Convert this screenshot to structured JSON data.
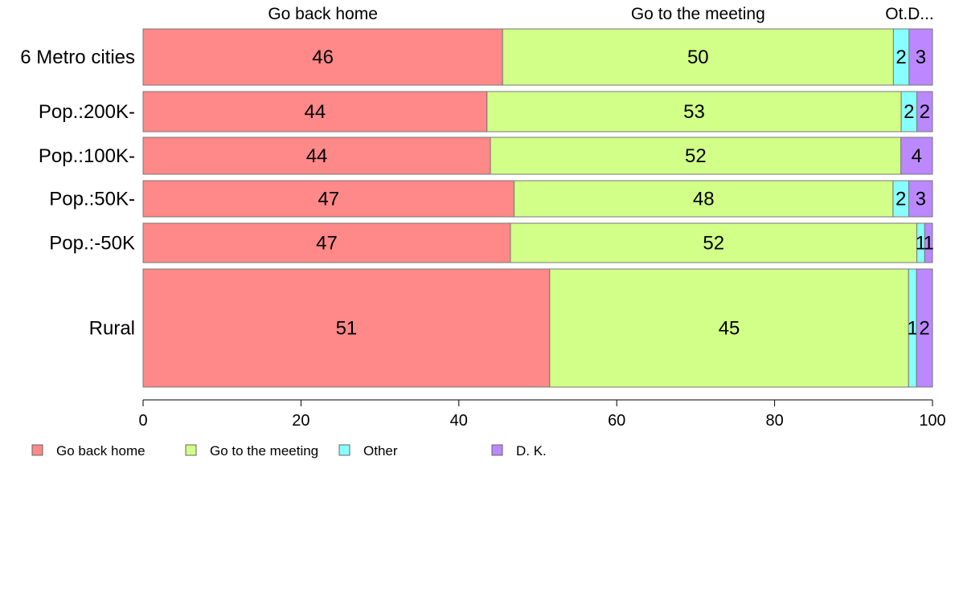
{
  "chart_data": {
    "type": "bar",
    "orientation": "horizontal",
    "stacked": true,
    "categories": [
      "6 Metro cities",
      "Pop.:200K-",
      "Pop.:100K-",
      "Pop.:50K-",
      "Pop.:-50K",
      "Rural"
    ],
    "series": [
      {
        "name": "Go back home",
        "color": "#FF8888",
        "values": [
          46,
          44,
          44,
          47,
          47,
          51
        ],
        "labels": [
          "46",
          "44",
          "44",
          "47",
          "47",
          "51"
        ]
      },
      {
        "name": "Go to the meeting",
        "color": "#D2FF88",
        "values": [
          50,
          53,
          52,
          48,
          52,
          45
        ],
        "labels": [
          "50",
          "53",
          "52",
          "48",
          "52",
          "45"
        ]
      },
      {
        "name": "Other",
        "color": "#88FFFF",
        "values": [
          2,
          2,
          0,
          2,
          1,
          1
        ],
        "labels": [
          "2",
          "2",
          "",
          "2",
          "1",
          "1"
        ]
      },
      {
        "name": "D. K.",
        "color": "#BB88FF",
        "values": [
          3,
          2,
          4,
          3,
          1,
          2
        ],
        "labels": [
          "3",
          "2",
          "4",
          "3",
          "1",
          "2"
        ]
      }
    ],
    "top_labels": [
      "Go back home",
      "Go to the meeting",
      "Ot...",
      "D..."
    ],
    "xlim": [
      0,
      100
    ],
    "xticks": [
      "0",
      "20",
      "40",
      "60",
      "80",
      "100"
    ],
    "grid": false,
    "legend_position": "bottom-left"
  }
}
